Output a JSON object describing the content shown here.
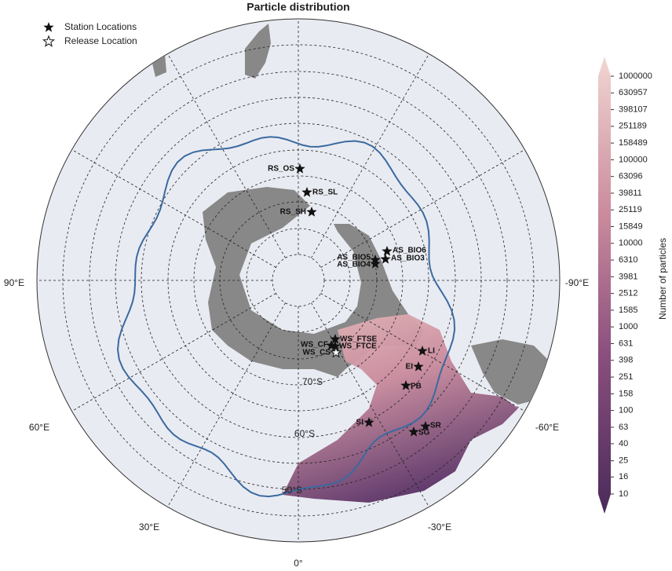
{
  "title": "Particle distribution",
  "legend": [
    "Station Locations",
    "Release Location"
  ],
  "stations": [
    "RS_OS",
    "RS_SL",
    "RS_SH",
    "AS_BIO6",
    "AS_BIO5",
    "AS_BIO3",
    "AS_BIO4",
    "WS_FTSE",
    "WS_CF",
    "WS_FTCE",
    "WS_CS",
    "LI",
    "EI",
    "PB",
    "SI",
    "SR",
    "SG"
  ],
  "latitude_labels": [
    "70°S",
    "60°S",
    "50°S"
  ],
  "longitude_labels": [
    "90°E",
    "-90°E",
    "60°E",
    "-60°E",
    "30°E",
    "-30°E",
    "0°"
  ],
  "colorbar": {
    "label": "Number of particles",
    "log": true,
    "lim": [
      10,
      1000000
    ],
    "ticks": [
      10,
      16,
      25,
      40,
      63,
      100,
      158,
      251,
      398,
      631,
      1000,
      1585,
      2512,
      3981,
      6310,
      10000,
      15849,
      25119,
      39811,
      63096,
      100000,
      158489,
      251189,
      398107,
      630957,
      1000000
    ]
  }
}
